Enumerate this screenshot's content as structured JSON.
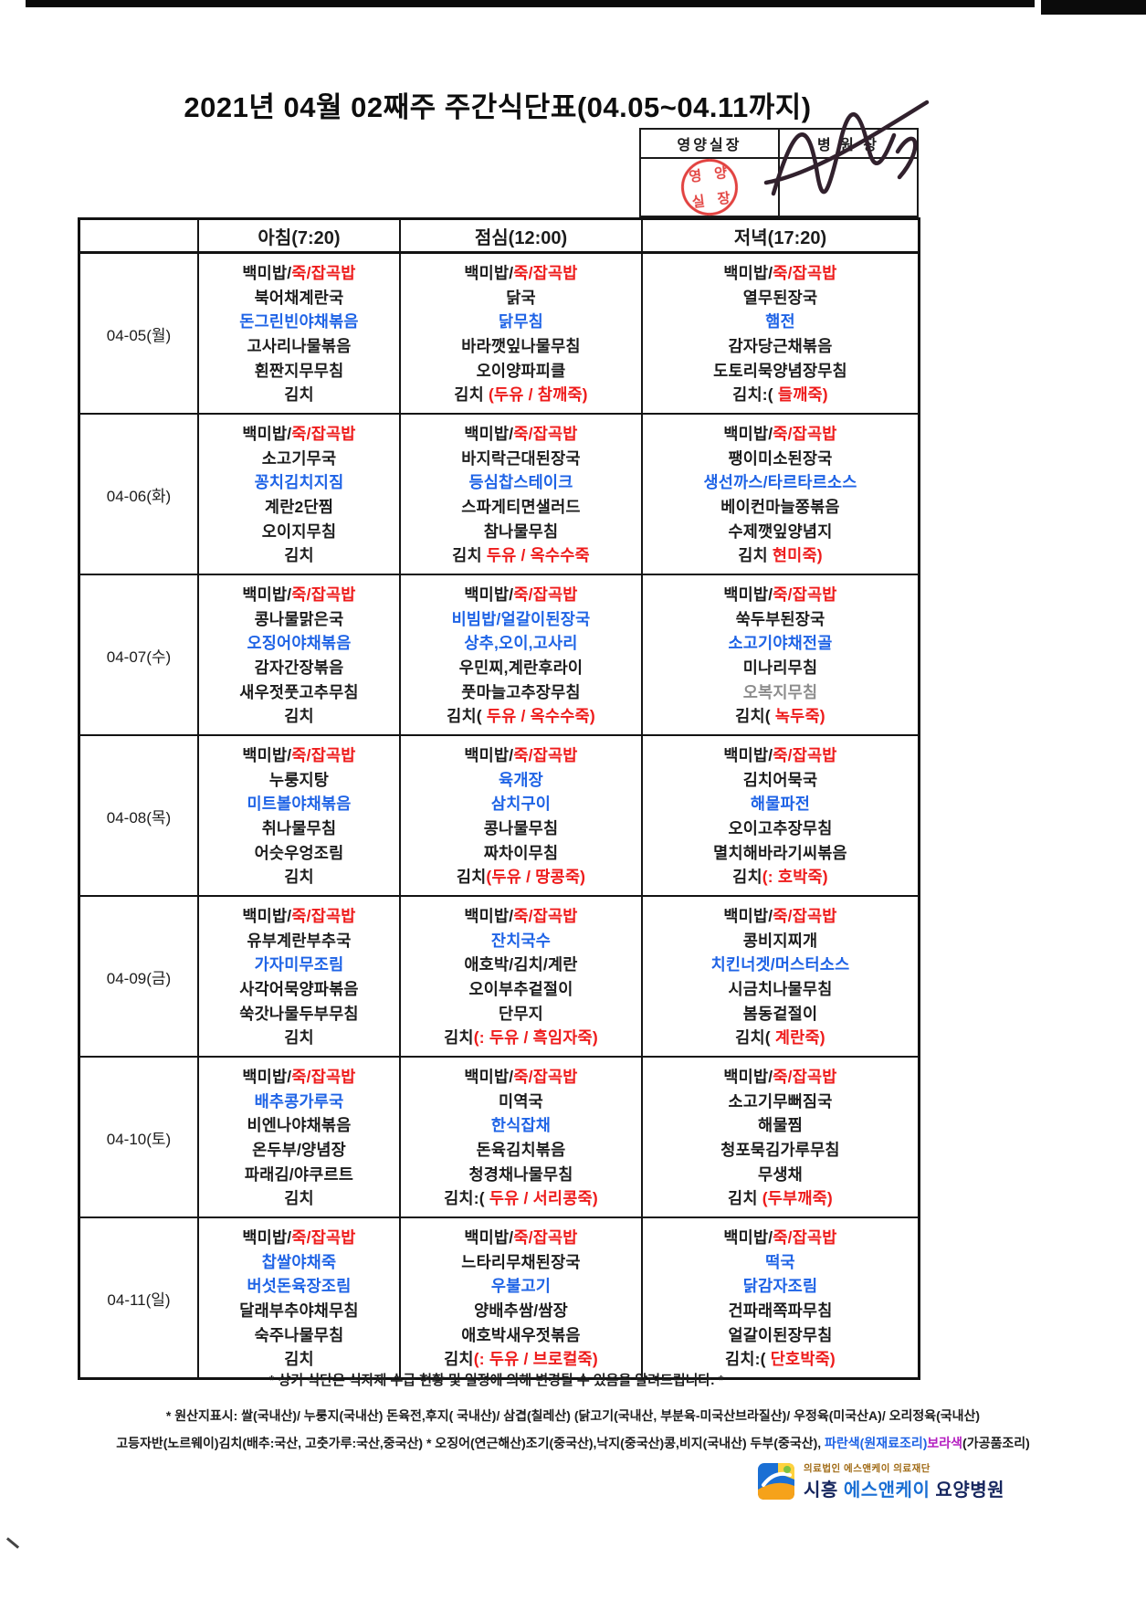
{
  "page": {
    "title": "2021년 04월 02째주 주간식단표(04.05~04.11까지)"
  },
  "approval": {
    "col1": "영양실장",
    "col2": "병 원 장",
    "stamp_text": "영양실장",
    "stamp_color": "#e03330"
  },
  "menu_table": {
    "time_headers": [
      "아침(7:20)",
      "점심(12:00)",
      "저녁(17:20)"
    ],
    "colors": {
      "k": "#1c1c1c",
      "r": "#ee1b1b",
      "b": "#1e63e6",
      "g": "#8c8c8c",
      "m": "#b41ec0"
    },
    "days": [
      {
        "date": "04-05(월)",
        "breakfast": [
          [
            [
              "백미밥/",
              "k"
            ],
            [
              "죽/잡곡밥",
              "r"
            ]
          ],
          [
            [
              "북어채계란국",
              "k"
            ]
          ],
          [
            [
              "돈그린빈야채볶음",
              "b"
            ]
          ],
          [
            [
              "고사리나물볶음",
              "k"
            ]
          ],
          [
            [
              "횐짠지무무침",
              "k"
            ]
          ],
          [
            [
              "김치",
              "k"
            ]
          ]
        ],
        "lunch": [
          [
            [
              "백미밥/",
              "k"
            ],
            [
              "죽/잡곡밥",
              "r"
            ]
          ],
          [
            [
              "닭국",
              "k"
            ]
          ],
          [
            [
              "닭무침",
              "b"
            ]
          ],
          [
            [
              "바라깻잎나물무침",
              "k"
            ]
          ],
          [
            [
              "오이양파피클",
              "k"
            ]
          ],
          [
            [
              "김치 ",
              "k"
            ],
            [
              "(두유 / 참깨죽)",
              "r"
            ]
          ]
        ],
        "dinner": [
          [
            [
              "백미밥/",
              "k"
            ],
            [
              "죽/잡곡밥",
              "r"
            ]
          ],
          [
            [
              "열무된장국",
              "k"
            ]
          ],
          [
            [
              "햄전",
              "b"
            ]
          ],
          [
            [
              "감자당근채볶음",
              "k"
            ]
          ],
          [
            [
              "도토리묵양념장무침",
              "k"
            ]
          ],
          [
            [
              "김치:( ",
              "k"
            ],
            [
              "들깨죽)",
              "r"
            ]
          ]
        ]
      },
      {
        "date": "04-06(화)",
        "breakfast": [
          [
            [
              "백미밥/",
              "k"
            ],
            [
              "죽/잡곡밥",
              "r"
            ]
          ],
          [
            [
              "소고기무국",
              "k"
            ]
          ],
          [
            [
              "꽁치김치지짐",
              "b"
            ]
          ],
          [
            [
              "계란2단찜",
              "k"
            ]
          ],
          [
            [
              "오이지무침",
              "k"
            ]
          ],
          [
            [
              "김치",
              "k"
            ]
          ]
        ],
        "lunch": [
          [
            [
              "백미밥/",
              "k"
            ],
            [
              "죽/잡곡밥",
              "r"
            ]
          ],
          [
            [
              "바지락근대된장국",
              "k"
            ]
          ],
          [
            [
              "등심찹스테이크",
              "b"
            ]
          ],
          [
            [
              "스파게티면샐러드",
              "k"
            ]
          ],
          [
            [
              "참나물무침",
              "k"
            ]
          ],
          [
            [
              "김치 ",
              "k"
            ],
            [
              "두유 / 옥수수죽",
              "r"
            ]
          ]
        ],
        "dinner": [
          [
            [
              "백미밥/",
              "k"
            ],
            [
              "죽/잡곡밥",
              "r"
            ]
          ],
          [
            [
              "팽이미소된장국",
              "k"
            ]
          ],
          [
            [
              "생선까스/타르타르소스",
              "b"
            ]
          ],
          [
            [
              "베이컨마늘쫑볶음",
              "k"
            ]
          ],
          [
            [
              "수제깻잎양념지",
              "k"
            ]
          ],
          [
            [
              "김치 ",
              "k"
            ],
            [
              "현미죽)",
              "r"
            ]
          ]
        ]
      },
      {
        "date": "04-07(수)",
        "breakfast": [
          [
            [
              "백미밥/",
              "k"
            ],
            [
              "죽/잡곡밥",
              "r"
            ]
          ],
          [
            [
              "콩나물맑은국",
              "k"
            ]
          ],
          [
            [
              "오징어야채볶음",
              "b"
            ]
          ],
          [
            [
              "감자간장볶음",
              "k"
            ]
          ],
          [
            [
              "새우젓풋고추무침",
              "k"
            ]
          ],
          [
            [
              "김치",
              "k"
            ]
          ]
        ],
        "lunch": [
          [
            [
              "백미밥/",
              "k"
            ],
            [
              "죽/잡곡밥",
              "r"
            ]
          ],
          [
            [
              "비빔밥/얼갈이된장국",
              "b"
            ]
          ],
          [
            [
              "상추,오이,고사리",
              "b"
            ]
          ],
          [
            [
              "우민찌,계란후라이",
              "k"
            ]
          ],
          [
            [
              "풋마늘고추장무침",
              "k"
            ]
          ],
          [
            [
              "김치( ",
              "k"
            ],
            [
              "두유 / 옥수수죽)",
              "r"
            ]
          ]
        ],
        "dinner": [
          [
            [
              "백미밥/",
              "k"
            ],
            [
              "죽/잡곡밥",
              "r"
            ]
          ],
          [
            [
              "쑥두부된장국",
              "k"
            ]
          ],
          [
            [
              "소고기야채전골",
              "b"
            ]
          ],
          [
            [
              "미나리무침",
              "k"
            ]
          ],
          [
            [
              "오복지무침",
              "g"
            ]
          ],
          [
            [
              "김치( ",
              "k"
            ],
            [
              "녹두죽)",
              "r"
            ]
          ]
        ]
      },
      {
        "date": "04-08(목)",
        "breakfast": [
          [
            [
              "백미밥/",
              "k"
            ],
            [
              "죽/잡곡밥",
              "r"
            ]
          ],
          [
            [
              "누룽지탕",
              "k"
            ]
          ],
          [
            [
              "미트볼야채볶음",
              "b"
            ]
          ],
          [
            [
              "취나물무침",
              "k"
            ]
          ],
          [
            [
              "어슷우엉조림",
              "k"
            ]
          ],
          [
            [
              "김치",
              "k"
            ]
          ]
        ],
        "lunch": [
          [
            [
              "백미밥/",
              "k"
            ],
            [
              "죽/잡곡밥",
              "r"
            ]
          ],
          [
            [
              "육개장",
              "b"
            ]
          ],
          [
            [
              "삼치구이",
              "b"
            ]
          ],
          [
            [
              "콩나물무침",
              "k"
            ]
          ],
          [
            [
              "짜차이무침",
              "k"
            ]
          ],
          [
            [
              "김치",
              "k"
            ],
            [
              "(두유 / 땅콩죽)",
              "r"
            ]
          ]
        ],
        "dinner": [
          [
            [
              "백미밥/",
              "k"
            ],
            [
              "죽/잡곡밥",
              "r"
            ]
          ],
          [
            [
              "김치어묵국",
              "k"
            ]
          ],
          [
            [
              "해물파전",
              "b"
            ]
          ],
          [
            [
              "오이고추장무침",
              "k"
            ]
          ],
          [
            [
              "멸치해바라기씨볶음",
              "k"
            ]
          ],
          [
            [
              "김치",
              "k"
            ],
            [
              "(: 호박죽)",
              "r"
            ]
          ]
        ]
      },
      {
        "date": "04-09(금)",
        "breakfast": [
          [
            [
              "백미밥/",
              "k"
            ],
            [
              "죽/잡곡밥",
              "r"
            ]
          ],
          [
            [
              "유부계란부추국",
              "k"
            ]
          ],
          [
            [
              "가자미무조림",
              "b"
            ]
          ],
          [
            [
              "사각어묵양파볶음",
              "k"
            ]
          ],
          [
            [
              "쑥갓나물두부무침",
              "k"
            ]
          ],
          [
            [
              "김치",
              "k"
            ]
          ]
        ],
        "lunch": [
          [
            [
              "백미밥/",
              "k"
            ],
            [
              "죽/잡곡밥",
              "r"
            ]
          ],
          [
            [
              "잔치국수",
              "b"
            ]
          ],
          [
            [
              "애호박/김치/계란",
              "k"
            ]
          ],
          [
            [
              "오이부추겉절이",
              "k"
            ]
          ],
          [
            [
              "단무지",
              "k"
            ]
          ],
          [
            [
              "김치",
              "k"
            ],
            [
              "(: 두유 / 흑임자죽)",
              "r"
            ]
          ]
        ],
        "dinner": [
          [
            [
              "백미밥/",
              "k"
            ],
            [
              "죽/잡곡밥",
              "r"
            ]
          ],
          [
            [
              "콩비지찌개",
              "k"
            ]
          ],
          [
            [
              "치킨너겟/머스터소스",
              "b"
            ]
          ],
          [
            [
              "시금치나물무침",
              "k"
            ]
          ],
          [
            [
              "봄동겉절이",
              "k"
            ]
          ],
          [
            [
              "김치( ",
              "k"
            ],
            [
              "계란죽)",
              "r"
            ]
          ]
        ]
      },
      {
        "date": "04-10(토)",
        "breakfast": [
          [
            [
              "백미밥/",
              "k"
            ],
            [
              "죽/잡곡밥",
              "r"
            ]
          ],
          [
            [
              "배추콩가루국",
              "b"
            ]
          ],
          [
            [
              "비엔나야채볶음",
              "k"
            ]
          ],
          [
            [
              "온두부/양념장",
              "k"
            ]
          ],
          [
            [
              "파래김/야쿠르트",
              "k"
            ]
          ],
          [
            [
              "김치",
              "k"
            ]
          ]
        ],
        "lunch": [
          [
            [
              "백미밥/",
              "k"
            ],
            [
              "죽/잡곡밥",
              "r"
            ]
          ],
          [
            [
              "미역국",
              "k"
            ]
          ],
          [
            [
              "한식잡채",
              "b"
            ]
          ],
          [
            [
              "돈육김치볶음",
              "k"
            ]
          ],
          [
            [
              "청경채나물무침",
              "k"
            ]
          ],
          [
            [
              "김치:( ",
              "k"
            ],
            [
              "두유 / 서리콩죽)",
              "r"
            ]
          ]
        ],
        "dinner": [
          [
            [
              "백미밥/",
              "k"
            ],
            [
              "죽/잡곡밥",
              "r"
            ]
          ],
          [
            [
              "소고기무뻐짐국",
              "k"
            ]
          ],
          [
            [
              "해물찜",
              "k"
            ]
          ],
          [
            [
              "청포묵김가루무침",
              "k"
            ]
          ],
          [
            [
              "무생채",
              "k"
            ]
          ],
          [
            [
              "김치 ",
              "k"
            ],
            [
              "(두부깨죽)",
              "r"
            ]
          ]
        ]
      },
      {
        "date": "04-11(일)",
        "breakfast": [
          [
            [
              "백미밥/",
              "k"
            ],
            [
              "죽/잡곡밥",
              "r"
            ]
          ],
          [
            [
              "찹쌀야채죽",
              "b"
            ]
          ],
          [
            [
              "버섯돈육장조림",
              "b"
            ]
          ],
          [
            [
              "달래부추야채무침",
              "k"
            ]
          ],
          [
            [
              "숙주나물무침",
              "k"
            ]
          ],
          [
            [
              "김치",
              "k"
            ]
          ]
        ],
        "lunch": [
          [
            [
              "백미밥/",
              "k"
            ],
            [
              "죽/잡곡밥",
              "r"
            ]
          ],
          [
            [
              "느타리무채된장국",
              "k"
            ]
          ],
          [
            [
              "우불고기",
              "b"
            ]
          ],
          [
            [
              "양배추쌈/쌈장",
              "k"
            ]
          ],
          [
            [
              "애호박새우젓볶음",
              "k"
            ]
          ],
          [
            [
              "김치",
              "k"
            ],
            [
              "(: 두유 / 브로컬죽)",
              "r"
            ]
          ]
        ],
        "dinner": [
          [
            [
              "백미밥/",
              "k"
            ],
            [
              "죽/잡곡밥",
              "r"
            ]
          ],
          [
            [
              "떡국",
              "b"
            ]
          ],
          [
            [
              "닭감자조림",
              "b"
            ]
          ],
          [
            [
              "건파래쪽파무침",
              "k"
            ]
          ],
          [
            [
              "얼갈이된장무침",
              "k"
            ]
          ],
          [
            [
              "김치:( ",
              "k"
            ],
            [
              "단호박죽)",
              "r"
            ]
          ]
        ]
      }
    ]
  },
  "footer": {
    "note1": "* 상기 식단은 식자재 수급 현황 및 일정에 의해 변경될 수 있음을 알려드립니다. *",
    "note2": "* 원산지표시: 쌀(국내산)/ 누룽지(국내산) 돈육전,후지( 국내산)/ 삼겹(칠레산) (닭고기(국내산, 부분육-미국산브라질산)/ 우정육(미국산A)/ 오리정육(국내산)",
    "note3_segments": [
      [
        "고등자반(노르웨이)김치(배추:국산, 고춧가루:국산,중국산) * 오징어(연근해산)조기(중국산),낙지(중국산)콩,비지(국내산) 두부(중국산), ",
        "k"
      ],
      [
        "파란색(원재료조리)",
        "b"
      ],
      [
        "보라색",
        "m"
      ],
      [
        "(가공품조리)",
        "k"
      ]
    ],
    "logo": {
      "org_small": "의료법인 에스앤케이 의료재단",
      "name_parts": [
        [
          "시흥 ",
          "navy"
        ],
        [
          "에스앤케이",
          "blue"
        ],
        [
          " 요양병원",
          "navy"
        ]
      ],
      "name_colors": {
        "navy": "#16265e",
        "blue": "#1a6fd4"
      }
    }
  }
}
